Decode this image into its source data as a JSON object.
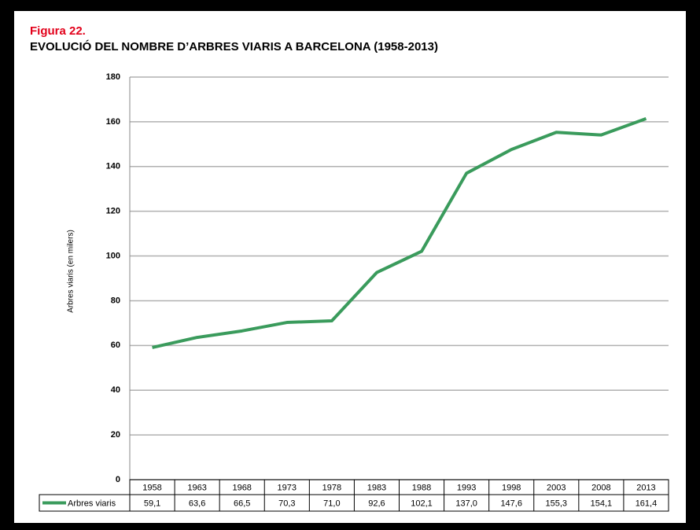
{
  "chart_data": {
    "type": "line",
    "figure": "Figura 22.",
    "title": "EVOLUCIÓ DEL NOMBRE D’ARBRES VIARIS A BARCELONA (1958-2013)",
    "ylabel": "Arbres viaris (en milers)",
    "categories": [
      "1958",
      "1963",
      "1968",
      "1973",
      "1978",
      "1983",
      "1988",
      "1993",
      "1998",
      "2003",
      "2008",
      "2013"
    ],
    "series": [
      {
        "name": "Arbres viaris",
        "color": "#3a9b5c",
        "values": [
          59.1,
          63.6,
          66.5,
          70.3,
          71.0,
          92.6,
          102.1,
          137.0,
          147.6,
          155.3,
          154.1,
          161.4
        ],
        "value_labels": [
          "59,1",
          "63,6",
          "66,5",
          "70,3",
          "71,0",
          "92,6",
          "102,1",
          "137,0",
          "147,6",
          "155,3",
          "154,1",
          "161,4"
        ]
      }
    ],
    "ylim": [
      0,
      180
    ],
    "yticks": [
      0,
      20,
      40,
      60,
      80,
      100,
      120,
      140,
      160,
      180
    ],
    "grid": true
  }
}
